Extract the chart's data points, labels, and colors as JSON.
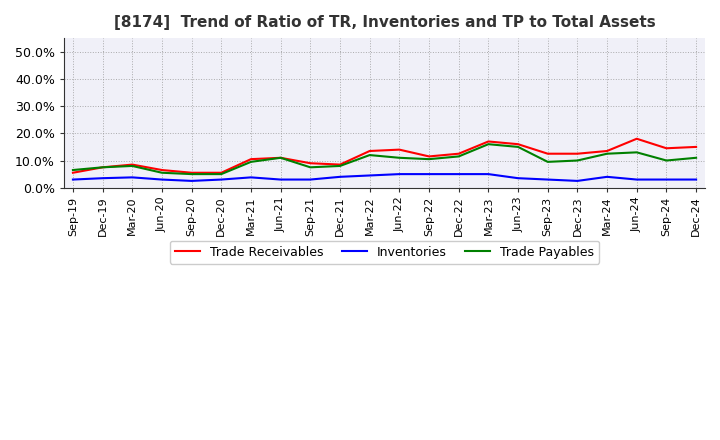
{
  "title": "[8174]  Trend of Ratio of TR, Inventories and TP to Total Assets",
  "labels": [
    "Sep-19",
    "Dec-19",
    "Mar-20",
    "Jun-20",
    "Sep-20",
    "Dec-20",
    "Mar-21",
    "Jun-21",
    "Sep-21",
    "Dec-21",
    "Mar-22",
    "Jun-22",
    "Sep-22",
    "Dec-22",
    "Mar-23",
    "Jun-23",
    "Sep-23",
    "Dec-23",
    "Mar-24",
    "Jun-24",
    "Sep-24",
    "Dec-24"
  ],
  "trade_receivables": [
    5.5,
    7.5,
    8.5,
    6.5,
    5.5,
    5.5,
    10.5,
    11.0,
    9.0,
    8.5,
    13.5,
    14.0,
    11.5,
    12.5,
    17.0,
    16.0,
    12.5,
    12.5,
    13.5,
    18.0,
    14.5,
    15.0
  ],
  "inventories": [
    3.0,
    3.5,
    3.8,
    3.0,
    2.5,
    3.0,
    3.8,
    3.0,
    3.0,
    4.0,
    4.5,
    5.0,
    5.0,
    5.0,
    5.0,
    3.5,
    3.0,
    2.5,
    4.0,
    3.0,
    3.0,
    3.0
  ],
  "trade_payables": [
    6.5,
    7.5,
    8.0,
    5.5,
    5.0,
    5.0,
    9.5,
    11.0,
    7.5,
    8.0,
    12.0,
    11.0,
    10.5,
    11.5,
    16.0,
    15.0,
    9.5,
    10.0,
    12.5,
    13.0,
    10.0,
    11.0
  ],
  "tr_color": "#ff0000",
  "inv_color": "#0000ff",
  "tp_color": "#008000",
  "ylim": [
    0,
    55
  ],
  "yticks": [
    0,
    10,
    20,
    30,
    40,
    50
  ],
  "ytick_labels": [
    "0.0%",
    "10.0%",
    "20.0%",
    "30.0%",
    "40.0%",
    "50.0%"
  ],
  "background_color": "#ffffff",
  "plot_bg_color": "#f0f0f8",
  "grid_color": "#999999",
  "legend_labels": [
    "Trade Receivables",
    "Inventories",
    "Trade Payables"
  ],
  "line_width": 1.5,
  "title_fontsize": 11,
  "tick_fontsize": 8,
  "ytick_fontsize": 9
}
